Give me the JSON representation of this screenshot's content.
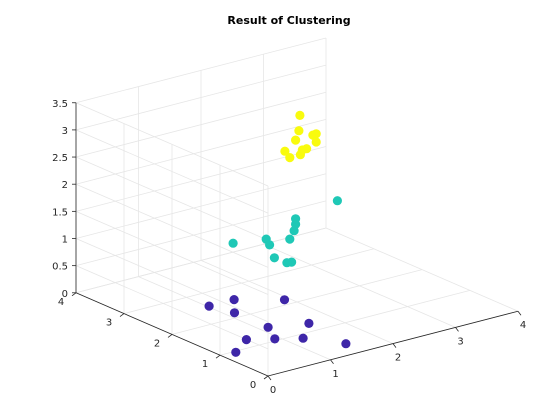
{
  "chart_data": {
    "type": "scatter3d",
    "title": "Result of Clustering",
    "xlabel": "",
    "ylabel": "",
    "zlabel": "",
    "xlim": [
      0,
      4
    ],
    "ylim": [
      0,
      4
    ],
    "zlim": [
      0,
      3.5
    ],
    "x_ticks": [
      "0",
      "1",
      "2",
      "3",
      "4"
    ],
    "y_ticks": [
      "0",
      "1",
      "2",
      "3",
      "4"
    ],
    "z_ticks": [
      "0",
      "0.5",
      "1",
      "1.5",
      "2",
      "2.5",
      "3",
      "3.5"
    ],
    "grid": true,
    "series": [
      {
        "color": "#3E26A8",
        "points": [
          [
            1.4,
            0.2,
            0.1
          ],
          [
            1.1,
            0.7,
            0.1
          ],
          [
            0.8,
            0.9,
            0.1
          ],
          [
            1.5,
            1.1,
            0.1
          ],
          [
            1.0,
            1.3,
            0.1
          ],
          [
            0.5,
            1.1,
            0.1
          ],
          [
            1.8,
            2.0,
            0.1
          ],
          [
            1.0,
            2.0,
            0.1
          ],
          [
            0.9,
            2.4,
            0.1
          ],
          [
            1.3,
            2.4,
            0.1
          ],
          [
            0.1,
            0.8,
            0.1
          ]
        ]
      },
      {
        "color": "#1FC8B6",
        "points": [
          [
            1.2,
            1.6,
            1.55
          ],
          [
            1.3,
            1.2,
            1.25
          ],
          [
            1.3,
            1.3,
            1.2
          ],
          [
            1.1,
            1.3,
            1.35
          ],
          [
            1.1,
            1.4,
            1.55
          ],
          [
            1.5,
            1.5,
            1.5
          ],
          [
            1.8,
            1.8,
            1.45
          ],
          [
            1.9,
            1.9,
            1.5
          ],
          [
            1.9,
            1.9,
            1.6
          ],
          [
            0.9,
            1.9,
            1.45
          ],
          [
            2.8,
            2.2,
            1.55
          ]
        ]
      },
      {
        "color": "#F9FB0E",
        "points": [
          [
            1.5,
            1.5,
            3.0
          ],
          [
            1.5,
            1.6,
            3.08
          ],
          [
            1.7,
            1.5,
            3.08
          ],
          [
            1.8,
            1.7,
            3.33
          ],
          [
            1.9,
            1.9,
            3.05
          ],
          [
            2.0,
            1.8,
            2.9
          ],
          [
            1.9,
            1.8,
            2.82
          ],
          [
            2.1,
            1.8,
            3.12
          ],
          [
            2.0,
            1.6,
            3.1
          ],
          [
            2.0,
            1.6,
            3.25
          ],
          [
            2.2,
            2.2,
            3.3
          ]
        ]
      }
    ]
  }
}
